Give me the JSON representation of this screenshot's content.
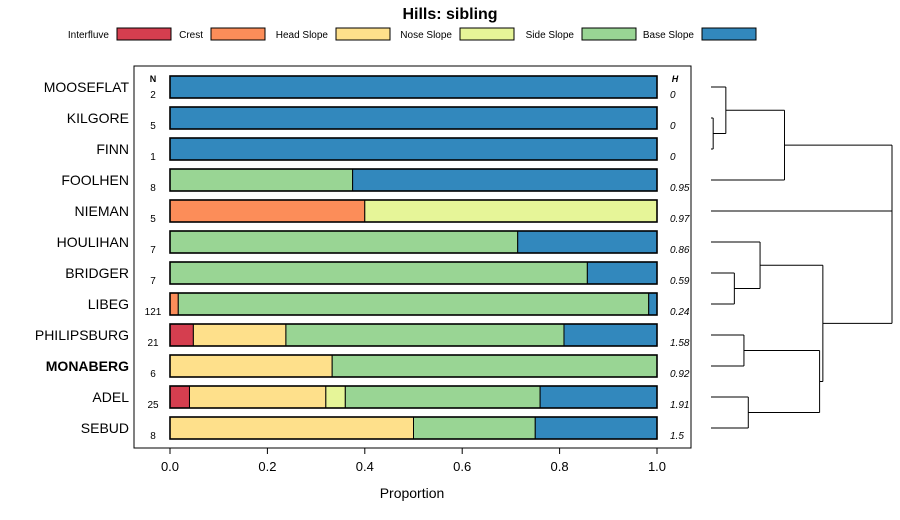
{
  "chart_data": {
    "type": "bar",
    "orientation": "horizontal",
    "stacked": true,
    "title": "Hills: sibling",
    "xlabel": "Proportion",
    "xlim": [
      0,
      1
    ],
    "xticks": [
      0,
      0.2,
      0.4,
      0.6,
      0.8,
      1.0
    ],
    "xtick_labels": [
      "0.0",
      "0.2",
      "0.4",
      "0.6",
      "0.8",
      "1.0"
    ],
    "n_header": "N",
    "h_header": "H",
    "legend": [
      {
        "label": "Interfluve",
        "color": "#D53E4F"
      },
      {
        "label": "Crest",
        "color": "#FC8D59"
      },
      {
        "label": "Head Slope",
        "color": "#FEE08B"
      },
      {
        "label": "Nose Slope",
        "color": "#E6F598"
      },
      {
        "label": "Side Slope",
        "color": "#99D594"
      },
      {
        "label": "Base Slope",
        "color": "#3288BD"
      }
    ],
    "rows": [
      {
        "name": "MOOSEFLAT",
        "n": "2",
        "h": "0",
        "bold": false,
        "values": [
          0,
          0,
          0,
          0,
          0,
          1
        ]
      },
      {
        "name": "KILGORE",
        "n": "5",
        "h": "0",
        "bold": false,
        "values": [
          0,
          0,
          0,
          0,
          0,
          1
        ]
      },
      {
        "name": "FINN",
        "n": "1",
        "h": "0",
        "bold": false,
        "values": [
          0,
          0,
          0,
          0,
          0,
          1
        ]
      },
      {
        "name": "FOOLHEN",
        "n": "8",
        "h": "0.95",
        "bold": false,
        "values": [
          0,
          0,
          0,
          0,
          0.375,
          0.625
        ]
      },
      {
        "name": "NIEMAN",
        "n": "5",
        "h": "0.97",
        "bold": false,
        "values": [
          0,
          0.4,
          0,
          0.6,
          0,
          0
        ]
      },
      {
        "name": "HOULIHAN",
        "n": "7",
        "h": "0.86",
        "bold": false,
        "values": [
          0,
          0,
          0,
          0,
          0.714,
          0.286
        ]
      },
      {
        "name": "BRIDGER",
        "n": "7",
        "h": "0.59",
        "bold": false,
        "values": [
          0,
          0,
          0,
          0,
          0.857,
          0.143
        ]
      },
      {
        "name": "LIBEG",
        "n": "121",
        "h": "0.24",
        "bold": false,
        "values": [
          0,
          0.017,
          0,
          0,
          0.966,
          0.017
        ]
      },
      {
        "name": "PHILIPSBURG",
        "n": "21",
        "h": "1.58",
        "bold": false,
        "values": [
          0.048,
          0,
          0.19,
          0,
          0.571,
          0.191
        ]
      },
      {
        "name": "MONABERG",
        "n": "6",
        "h": "0.92",
        "bold": true,
        "values": [
          0,
          0,
          0.333,
          0,
          0.667,
          0
        ]
      },
      {
        "name": "ADEL",
        "n": "25",
        "h": "1.91",
        "bold": false,
        "values": [
          0.04,
          0,
          0.28,
          0.04,
          0.4,
          0.24
        ]
      },
      {
        "name": "SEBUD",
        "n": "8",
        "h": "1.5",
        "bold": false,
        "values": [
          0,
          0,
          0.5,
          0,
          0.25,
          0.25
        ]
      }
    ],
    "dendrogram": {
      "leaf_order": [
        "MOOSEFLAT",
        "KILGORE",
        "FINN",
        "FOOLHEN",
        "NIEMAN",
        "HOULIHAN",
        "BRIDGER",
        "LIBEG",
        "PHILIPSBURG",
        "MONABERG",
        "ADEL",
        "SEBUD"
      ],
      "max_height": 1.0,
      "merges": [
        {
          "a": "L1",
          "b": "L2",
          "height": 0.012
        },
        {
          "a": "L0",
          "b": "M0",
          "height": 0.082
        },
        {
          "a": "M1",
          "b": "L3",
          "height": 0.406
        },
        {
          "a": "L6",
          "b": "L7",
          "height": 0.129
        },
        {
          "a": "L5",
          "b": "M3",
          "height": 0.271
        },
        {
          "a": "L8",
          "b": "L9",
          "height": 0.182
        },
        {
          "a": "L10",
          "b": "L11",
          "height": 0.206
        },
        {
          "a": "M5",
          "b": "M6",
          "height": 0.6
        },
        {
          "a": "M4",
          "b": "M7",
          "height": 0.618
        },
        {
          "a": "M2",
          "b": "L4",
          "height": 1.0
        },
        {
          "a": "M9",
          "b": "M8",
          "height": 1.0
        }
      ]
    }
  }
}
